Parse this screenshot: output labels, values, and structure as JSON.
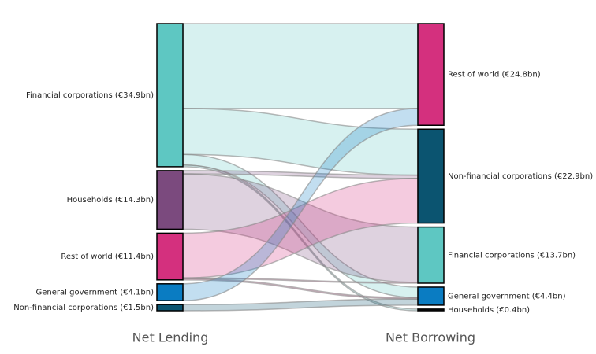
{
  "chart_data": {
    "type": "sankey",
    "source_title": "Net Lending",
    "target_title": "Net Borrowing",
    "sources": [
      {
        "label": "Financial corporations (€34.9bn)",
        "value": 34.9,
        "color": "#5ec7c2"
      },
      {
        "label": "Households (€14.3bn)",
        "value": 14.3,
        "color": "#7b4a7e"
      },
      {
        "label": "Rest of world (€11.4bn)",
        "value": 11.4,
        "color": "#d4307e"
      },
      {
        "label": "General government (€4.1bn)",
        "value": 4.1,
        "color": "#0a7cc2"
      },
      {
        "label": "Non-financial corporations (€1.5bn)",
        "value": 1.5,
        "color": "#0b5470"
      }
    ],
    "targets": [
      {
        "label": "Rest of world (€24.8bn)",
        "value": 24.8,
        "color": "#d4307e"
      },
      {
        "label": "Non-financial corporations (€22.9bn)",
        "value": 22.9,
        "color": "#0b5470"
      },
      {
        "label": "Financial corporations (€13.7bn)",
        "value": 13.7,
        "color": "#5ec7c2"
      },
      {
        "label": "General government (€4.4bn)",
        "value": 4.4,
        "color": "#0a7cc2"
      },
      {
        "label": "Households (€0.4bn)",
        "value": 0.4,
        "color": "#111111"
      }
    ],
    "links": [
      {
        "source": 0,
        "target": 0,
        "value": 20.7
      },
      {
        "source": 0,
        "target": 1,
        "value": 11.2
      },
      {
        "source": 0,
        "target": 3,
        "value": 2.6
      },
      {
        "source": 0,
        "target": 4,
        "value": 0.4
      },
      {
        "source": 1,
        "target": 1,
        "value": 0.8
      },
      {
        "source": 1,
        "target": 2,
        "value": 13.5
      },
      {
        "source": 2,
        "target": 1,
        "value": 10.9
      },
      {
        "source": 2,
        "target": 2,
        "value": 0.2
      },
      {
        "source": 2,
        "target": 3,
        "value": 0.3
      },
      {
        "source": 3,
        "target": 0,
        "value": 4.1
      },
      {
        "source": 4,
        "target": 3,
        "value": 1.5
      }
    ]
  }
}
